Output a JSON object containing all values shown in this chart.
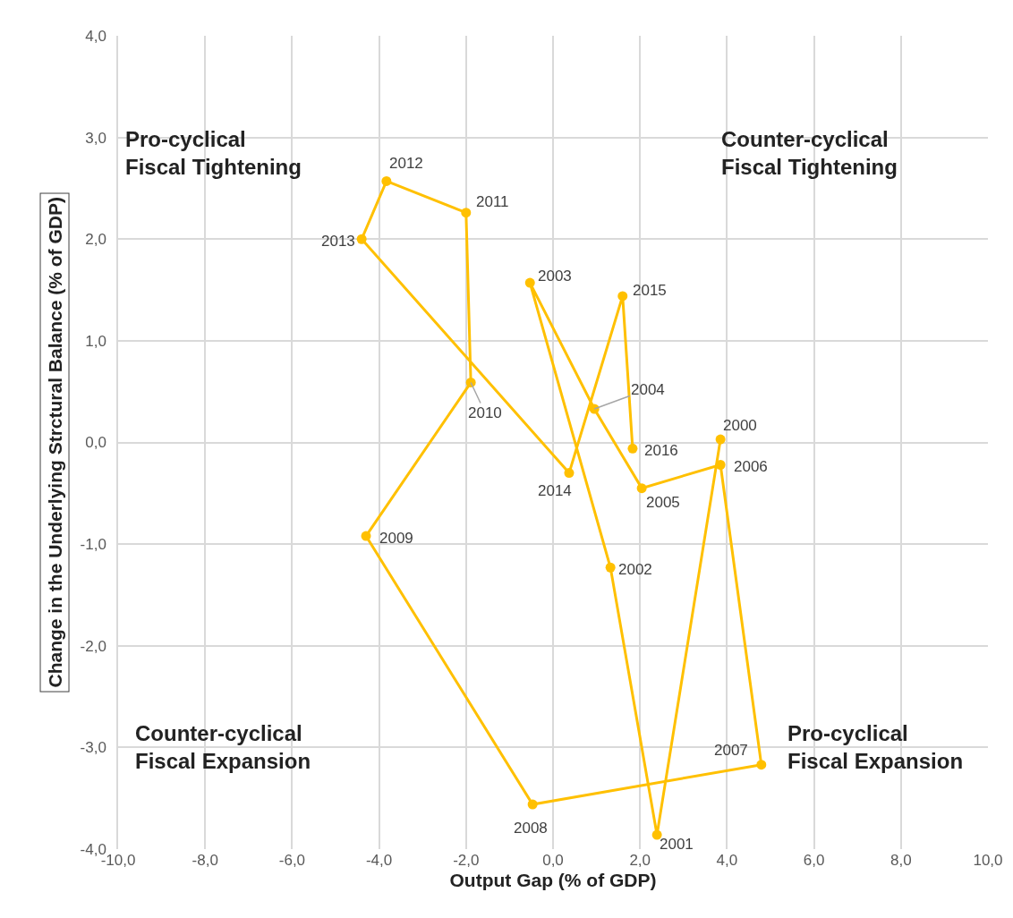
{
  "chart_data": {
    "type": "line",
    "xlabel": "Output Gap (% of GDP)",
    "ylabel": "Change in the Underlying Strctural Balance (% of GDP)",
    "x": [
      3.85,
      2.39,
      1.32,
      -0.53,
      0.95,
      2.04,
      3.85,
      4.79,
      -0.47,
      -4.3,
      -1.89,
      -2.0,
      -3.83,
      -4.4,
      0.37,
      1.6,
      1.83
    ],
    "series": [
      {
        "color": "#ffc000",
        "values": [
          0.03,
          -3.86,
          -1.23,
          1.57,
          0.33,
          -0.45,
          -0.22,
          -3.17,
          -3.56,
          -0.92,
          0.59,
          2.26,
          2.57,
          2.0,
          -0.3,
          1.44,
          -0.06
        ]
      }
    ],
    "marker": "circle",
    "line_style": "solid",
    "grid": true,
    "xlim": [
      -10,
      10
    ],
    "ylim": [
      -4,
      4
    ],
    "xticks": [
      {
        "value": -10,
        "label": "-10,0"
      },
      {
        "value": -8,
        "label": "-8,0"
      },
      {
        "value": -6,
        "label": "-6,0"
      },
      {
        "value": -4,
        "label": "-4,0"
      },
      {
        "value": -2,
        "label": "-2,0"
      },
      {
        "value": 0,
        "label": "0,0"
      },
      {
        "value": 2,
        "label": "2,0"
      },
      {
        "value": 4,
        "label": "4,0"
      },
      {
        "value": 6,
        "label": "6,0"
      },
      {
        "value": 8,
        "label": "8,0"
      },
      {
        "value": 10,
        "label": "10,0"
      }
    ],
    "yticks": [
      {
        "value": -4,
        "label": "-4,0"
      },
      {
        "value": -3,
        "label": "-3,0"
      },
      {
        "value": -2,
        "label": "-2,0"
      },
      {
        "value": -1,
        "label": "-1,0"
      },
      {
        "value": 0,
        "label": "0,0"
      },
      {
        "value": 1,
        "label": "1,0"
      },
      {
        "value": 2,
        "label": "2,0"
      },
      {
        "value": 3,
        "label": "3,0"
      },
      {
        "value": 4,
        "label": "4,0"
      }
    ],
    "annotations": [
      {
        "text": "2000",
        "x": 3.85,
        "y": 0.03
      },
      {
        "text": "2001",
        "x": 2.39,
        "y": -3.86
      },
      {
        "text": "2002",
        "x": 1.32,
        "y": -1.23
      },
      {
        "text": "2003",
        "x": -0.53,
        "y": 1.57
      },
      {
        "text": "2004",
        "x": 0.95,
        "y": 0.33
      },
      {
        "text": "2005",
        "x": 2.04,
        "y": -0.45
      },
      {
        "text": "2006",
        "x": 3.85,
        "y": -0.22
      },
      {
        "text": "2007",
        "x": 4.79,
        "y": -3.17
      },
      {
        "text": "2008",
        "x": -0.47,
        "y": -3.56
      },
      {
        "text": "2009",
        "x": -4.3,
        "y": -0.92
      },
      {
        "text": "2010",
        "x": -1.89,
        "y": 0.59
      },
      {
        "text": "2011",
        "x": -2.0,
        "y": 2.26
      },
      {
        "text": "2012",
        "x": -3.83,
        "y": 2.57
      },
      {
        "text": "2013",
        "x": -4.4,
        "y": 2.0
      },
      {
        "text": "2014",
        "x": 0.37,
        "y": -0.3
      },
      {
        "text": "2015",
        "x": 1.6,
        "y": 1.44
      },
      {
        "text": "2016",
        "x": 1.83,
        "y": -0.06
      },
      "Pro-cyclical\nFiscal Tightening",
      "Counter-cyclical\nFiscal Tightening",
      "Counter-cyclical\nFiscal Expansion",
      "Pro-cyclical\nFiscal Expansion"
    ]
  }
}
